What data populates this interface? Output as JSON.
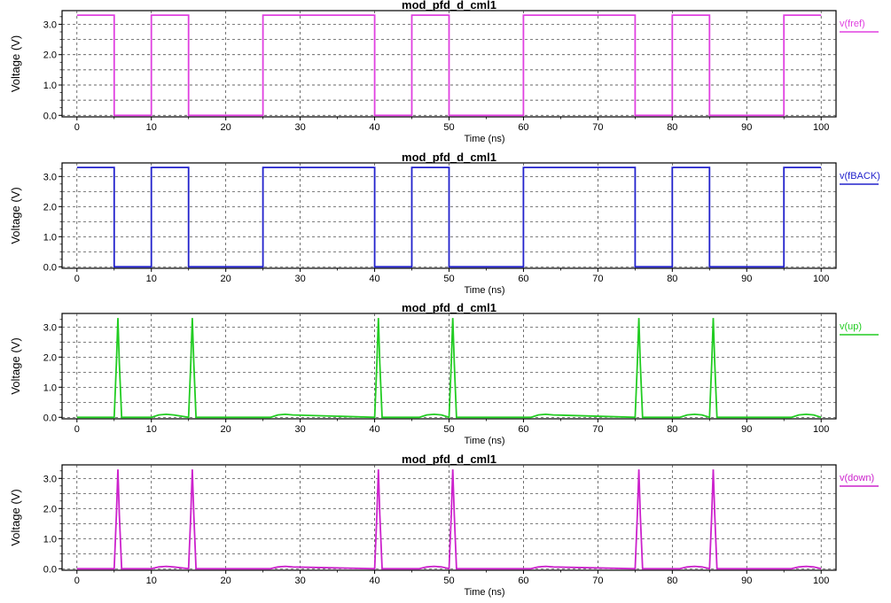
{
  "chart_data": [
    {
      "type": "line",
      "title": "mod_pfd_d_cml1",
      "xlabel": "Time (ns)",
      "ylabel": "Voltage (V)",
      "xlim": [
        -2,
        102
      ],
      "ylim": [
        -0.05,
        3.45
      ],
      "xticks": [
        "0",
        "10",
        "20",
        "30",
        "40",
        "50",
        "60",
        "70",
        "80",
        "90",
        "100"
      ],
      "yticks": [
        "0.0",
        "1.0",
        "2.0",
        "3.0"
      ],
      "grid": true,
      "legend_position": "right",
      "series": [
        {
          "name": "v(fref)",
          "color": "#e040e0",
          "x": [
            0,
            5,
            5,
            10,
            10,
            15,
            15,
            25,
            25,
            40,
            40,
            45,
            45,
            50,
            50,
            60,
            60,
            75,
            75,
            80,
            80,
            85,
            85,
            95,
            95,
            100
          ],
          "y": [
            3.3,
            3.3,
            0,
            0,
            3.3,
            3.3,
            0,
            0,
            3.3,
            3.3,
            0,
            0,
            3.3,
            3.3,
            0,
            0,
            3.3,
            3.3,
            0,
            0,
            3.3,
            3.3,
            0,
            0,
            3.3,
            3.3
          ]
        }
      ]
    },
    {
      "type": "line",
      "title": "mod_pfd_d_cml1",
      "xlabel": "Time (ns)",
      "ylabel": "Voltage (V)",
      "xlim": [
        -2,
        102
      ],
      "ylim": [
        -0.05,
        3.45
      ],
      "xticks": [
        "0",
        "10",
        "20",
        "30",
        "40",
        "50",
        "60",
        "70",
        "80",
        "90",
        "100"
      ],
      "yticks": [
        "0.0",
        "1.0",
        "2.0",
        "3.0"
      ],
      "grid": true,
      "legend_position": "right",
      "series": [
        {
          "name": "v(fBACK)",
          "color": "#2222cc",
          "x": [
            0,
            5,
            5,
            10,
            10,
            15,
            15,
            25,
            25,
            40,
            40,
            45,
            45,
            50,
            50,
            60,
            60,
            75,
            75,
            80,
            80,
            85,
            85,
            95,
            95,
            100
          ],
          "y": [
            3.3,
            3.3,
            0,
            0,
            3.3,
            3.3,
            0,
            0,
            3.3,
            3.3,
            0,
            0,
            3.3,
            3.3,
            0,
            0,
            3.3,
            3.3,
            0,
            0,
            3.3,
            3.3,
            0,
            0,
            3.3,
            3.3
          ]
        }
      ]
    },
    {
      "type": "line",
      "title": "mod_pfd_d_cml1",
      "xlabel": "Time (ns)",
      "ylabel": "Voltage (V)",
      "xlim": [
        -2,
        102
      ],
      "ylim": [
        -0.05,
        3.45
      ],
      "xticks": [
        "0",
        "10",
        "20",
        "30",
        "40",
        "50",
        "60",
        "70",
        "80",
        "90",
        "100"
      ],
      "yticks": [
        "0.0",
        "1.0",
        "2.0",
        "3.0"
      ],
      "grid": true,
      "legend_position": "right",
      "series": [
        {
          "name": "v(up)",
          "color": "#22cc22",
          "x": [
            0,
            5.0,
            5.3,
            5.5,
            5.7,
            6.0,
            10,
            11,
            12,
            13,
            15.0,
            15.3,
            15.5,
            15.7,
            16.0,
            26,
            27,
            28,
            29,
            40.0,
            40.3,
            40.5,
            40.7,
            41.0,
            46,
            47,
            48,
            49,
            50.0,
            50.3,
            50.5,
            50.7,
            51.0,
            61,
            62,
            63,
            64,
            75.0,
            75.3,
            75.5,
            75.7,
            76.0,
            81,
            82,
            83,
            84,
            85.0,
            85.3,
            85.5,
            85.7,
            86.0,
            96,
            97,
            98,
            99,
            100
          ],
          "y": [
            0,
            0,
            1.8,
            3.3,
            1.8,
            0,
            0,
            0.08,
            0.1,
            0.08,
            0,
            1.8,
            3.3,
            1.8,
            0,
            0,
            0.08,
            0.1,
            0.08,
            0,
            1.8,
            3.3,
            1.8,
            0,
            0,
            0.08,
            0.1,
            0.08,
            0,
            1.8,
            3.3,
            1.8,
            0,
            0,
            0.08,
            0.1,
            0.08,
            0,
            1.8,
            3.3,
            1.8,
            0,
            0,
            0.08,
            0.1,
            0.08,
            0,
            1.8,
            3.3,
            1.8,
            0,
            0,
            0.08,
            0.1,
            0.08,
            0
          ]
        }
      ]
    },
    {
      "type": "line",
      "title": "mod_pfd_d_cml1",
      "xlabel": "Time (ns)",
      "ylabel": "Voltage (V)",
      "xlim": [
        -2,
        102
      ],
      "ylim": [
        -0.05,
        3.45
      ],
      "xticks": [
        "0",
        "10",
        "20",
        "30",
        "40",
        "50",
        "60",
        "70",
        "80",
        "90",
        "100"
      ],
      "yticks": [
        "0.0",
        "1.0",
        "2.0",
        "3.0"
      ],
      "grid": true,
      "legend_position": "right",
      "series": [
        {
          "name": "v(down)",
          "color": "#cc22cc",
          "x": [
            0,
            5.0,
            5.3,
            5.5,
            5.7,
            6.0,
            10,
            11,
            12,
            13,
            15.0,
            15.3,
            15.5,
            15.7,
            16.0,
            26,
            27,
            28,
            29,
            40.0,
            40.3,
            40.5,
            40.7,
            41.0,
            46,
            47,
            48,
            49,
            50.0,
            50.3,
            50.5,
            50.7,
            51.0,
            61,
            62,
            63,
            64,
            75.0,
            75.3,
            75.5,
            75.7,
            76.0,
            81,
            82,
            83,
            84,
            85.0,
            85.3,
            85.5,
            85.7,
            86.0,
            96,
            97,
            98,
            99,
            100
          ],
          "y": [
            0,
            0,
            1.8,
            3.3,
            1.8,
            0,
            0,
            0.06,
            0.08,
            0.06,
            0,
            1.8,
            3.3,
            1.8,
            0,
            0,
            0.06,
            0.08,
            0.06,
            0,
            1.8,
            3.3,
            1.8,
            0,
            0,
            0.06,
            0.08,
            0.06,
            0,
            1.8,
            3.3,
            1.8,
            0,
            0,
            0.06,
            0.08,
            0.06,
            0,
            1.8,
            3.3,
            1.8,
            0,
            0,
            0.06,
            0.08,
            0.06,
            0,
            1.8,
            3.3,
            1.8,
            0,
            0,
            0.06,
            0.08,
            0.06,
            0
          ]
        }
      ]
    }
  ]
}
